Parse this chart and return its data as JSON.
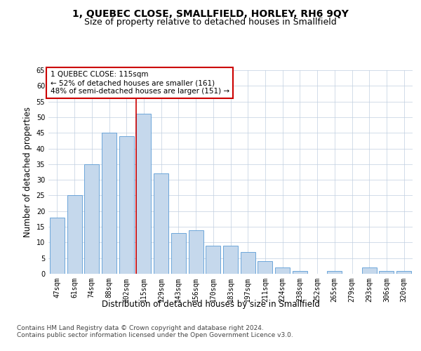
{
  "title": "1, QUEBEC CLOSE, SMALLFIELD, HORLEY, RH6 9QY",
  "subtitle": "Size of property relative to detached houses in Smallfield",
  "xlabel": "Distribution of detached houses by size in Smallfield",
  "ylabel": "Number of detached properties",
  "categories": [
    "47sqm",
    "61sqm",
    "74sqm",
    "88sqm",
    "102sqm",
    "115sqm",
    "129sqm",
    "143sqm",
    "156sqm",
    "170sqm",
    "183sqm",
    "197sqm",
    "211sqm",
    "224sqm",
    "238sqm",
    "252sqm",
    "265sqm",
    "279sqm",
    "293sqm",
    "306sqm",
    "320sqm"
  ],
  "values": [
    18,
    25,
    35,
    45,
    44,
    51,
    32,
    13,
    14,
    9,
    9,
    7,
    4,
    2,
    1,
    0,
    1,
    0,
    2,
    1,
    1
  ],
  "bar_color": "#c5d8ec",
  "bar_edge_color": "#5b9bd5",
  "highlight_index": 5,
  "highlight_line_color": "#cc0000",
  "annotation_text": "1 QUEBEC CLOSE: 115sqm\n← 52% of detached houses are smaller (161)\n48% of semi-detached houses are larger (151) →",
  "annotation_box_color": "#ffffff",
  "annotation_box_edge_color": "#cc0000",
  "ylim": [
    0,
    65
  ],
  "yticks": [
    0,
    5,
    10,
    15,
    20,
    25,
    30,
    35,
    40,
    45,
    50,
    55,
    60,
    65
  ],
  "footer_text": "Contains HM Land Registry data © Crown copyright and database right 2024.\nContains public sector information licensed under the Open Government Licence v3.0.",
  "bg_color": "#ffffff",
  "grid_color": "#c0cfe0",
  "title_fontsize": 10,
  "subtitle_fontsize": 9,
  "axis_label_fontsize": 8.5,
  "tick_fontsize": 7,
  "annotation_fontsize": 7.5,
  "footer_fontsize": 6.5
}
